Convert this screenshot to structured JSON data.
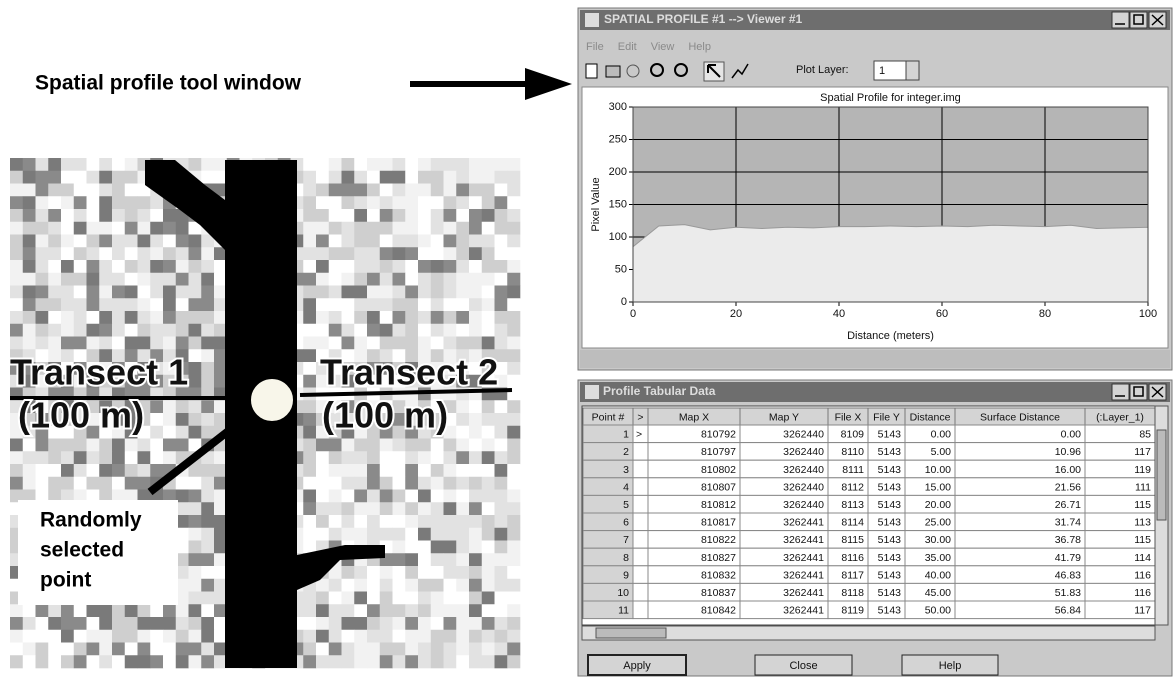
{
  "annotation": "Spatial profile tool window",
  "image_labels": {
    "transect_1": "Transect 1",
    "transect_1_length": "(100 m)",
    "transect_2": "Transect 2",
    "transect_2_length": "(100 m)",
    "point": [
      "Randomly",
      "selected",
      "point"
    ]
  },
  "profile_window": {
    "title": "SPATIAL PROFILE #1 --> Viewer #1",
    "menu": [
      "File",
      "Edit",
      "View",
      "Help"
    ],
    "plot_layer_label": "Plot Layer:",
    "plot_layer_value": "1"
  },
  "chart_data": {
    "type": "area",
    "title": "Spatial Profile for integer.img",
    "xlabel": "Distance (meters)",
    "ylabel": "Pixel Value",
    "x": [
      0,
      5,
      10,
      15,
      20,
      25,
      30,
      35,
      40,
      45,
      50,
      55,
      60,
      65,
      70,
      75,
      80,
      85,
      90,
      95,
      100
    ],
    "values": [
      85,
      117,
      119,
      111,
      115,
      113,
      115,
      114,
      116,
      116,
      117,
      116,
      117,
      116,
      118,
      117,
      116,
      118,
      113,
      114,
      115
    ],
    "xlim": [
      0,
      100
    ],
    "ylim": [
      0,
      300
    ],
    "xticks": [
      0,
      20,
      40,
      60,
      80,
      100
    ],
    "yticks": [
      0,
      50,
      100,
      150,
      200,
      250,
      300
    ],
    "grid": true,
    "color": "#ebebeb",
    "background": "#b5b5b5"
  },
  "table_window": {
    "title": "Profile Tabular Data",
    "columns": [
      "Point #",
      ">",
      "Map X",
      "Map Y",
      "File X",
      "File Y",
      "Distance",
      "Surface Distance",
      "(:Layer_1)"
    ],
    "rows": [
      [
        "1",
        ">",
        "810792",
        "3262440",
        "8109",
        "5143",
        "0.00",
        "0.00",
        "85"
      ],
      [
        "2",
        null,
        "810797",
        "3262440",
        "8110",
        "5143",
        "5.00",
        "10.96",
        "117"
      ],
      [
        "3",
        null,
        "810802",
        "3262440",
        "8111",
        "5143",
        "10.00",
        "16.00",
        "119"
      ],
      [
        "4",
        null,
        "810807",
        "3262440",
        "8112",
        "5143",
        "15.00",
        "21.56",
        "111"
      ],
      [
        "5",
        null,
        "810812",
        "3262440",
        "8113",
        "5143",
        "20.00",
        "26.71",
        "115"
      ],
      [
        "6",
        null,
        "810817",
        "3262441",
        "8114",
        "5143",
        "25.00",
        "31.74",
        "113"
      ],
      [
        "7",
        null,
        "810822",
        "3262441",
        "8115",
        "5143",
        "30.00",
        "36.78",
        "115"
      ],
      [
        "8",
        null,
        "810827",
        "3262441",
        "8116",
        "5143",
        "35.00",
        "41.79",
        "114"
      ],
      [
        "9",
        null,
        "810832",
        "3262441",
        "8117",
        "5143",
        "40.00",
        "46.83",
        "116"
      ],
      [
        "10",
        null,
        "810837",
        "3262441",
        "8118",
        "5143",
        "45.00",
        "51.83",
        "116"
      ],
      [
        "11",
        null,
        "810842",
        "3262441",
        "8119",
        "5143",
        "50.00",
        "56.84",
        "117"
      ]
    ],
    "buttons": [
      "Apply",
      "Close",
      "Help"
    ]
  }
}
